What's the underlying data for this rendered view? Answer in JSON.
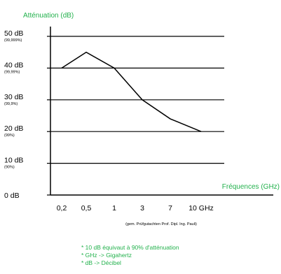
{
  "chart_data": {
    "type": "line",
    "title": "Atténuation (dB)",
    "xlabel": "Fréquences (GHz)",
    "ylabel": "",
    "categories": [
      "0,2",
      "0,5",
      "1",
      "3",
      "7",
      "10 GHz"
    ],
    "series": [
      {
        "values": [
          40,
          45,
          40,
          30,
          24,
          20
        ]
      }
    ],
    "ylim": [
      0,
      50
    ],
    "y_ticks": [
      {
        "value": 50,
        "label": "50 dB",
        "sublabel": "(99,999%)"
      },
      {
        "value": 40,
        "label": "40 dB",
        "sublabel": "(99,99%)"
      },
      {
        "value": 30,
        "label": "30 dB",
        "sublabel": "(99,9%)"
      },
      {
        "value": 20,
        "label": "20 dB",
        "sublabel": "(99%)"
      },
      {
        "value": 10,
        "label": "10 dB",
        "sublabel": "(90%)"
      },
      {
        "value": 0,
        "label": "0 dB",
        "sublabel": ""
      }
    ],
    "grid": true,
    "source": "(gem. Prüfgutachten Prof. Dipl. Ing. Pauli)",
    "notes": [
      "10 dB équivaut à 90% d'atténuation",
      "GHz -> Gigahertz",
      "dB -> Décibel"
    ]
  },
  "colors": {
    "accent_green": "#22b14c",
    "line": "#000000",
    "grid": "#000000",
    "text": "#000000"
  }
}
